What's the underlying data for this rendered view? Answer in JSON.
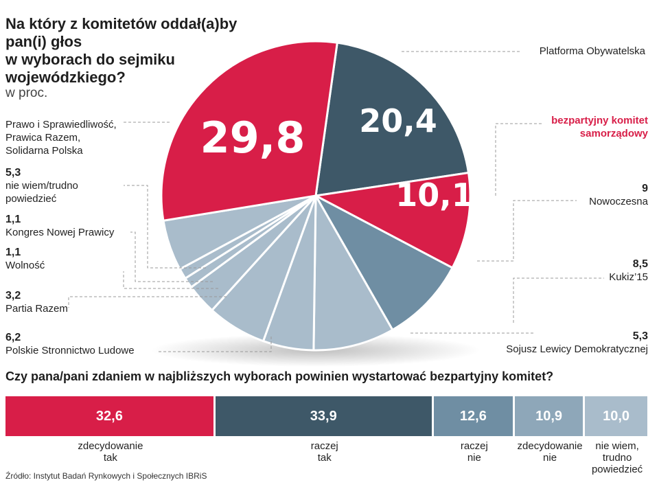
{
  "title_lines": [
    "Na który z komitetów oddał(a)by",
    "pan(i) głos",
    "w wyborach do sejmiku",
    "wojewódzkiego?"
  ],
  "unit": "w proc.",
  "colors": {
    "red": "#d81e48",
    "dark": "#3e5868",
    "mid": "#6f8ea3",
    "light": "#a9bccb"
  },
  "chart_data": [
    {
      "type": "pie",
      "title": "Na który z komitetów oddał(a)by pan(i) głos w wyborach do sejmiku wojewódzkiego?",
      "unit": "w proc.",
      "slices": [
        {
          "label": "Platforma Obywatelska",
          "value": 20.4,
          "display": "20,4",
          "color": "#3e5868"
        },
        {
          "label": "bezpartyjny komitet samorządowy",
          "value": 10.1,
          "display": "10,1",
          "color": "#d81e48"
        },
        {
          "label": "Nowoczesna",
          "value": 9,
          "display": "9",
          "color": "#6f8ea3"
        },
        {
          "label": "Kukiz'15",
          "value": 8.5,
          "display": "8,5",
          "color": "#a9bccb"
        },
        {
          "label": "Sojusz Lewicy Demokratycznej",
          "value": 5.3,
          "display": "5,3",
          "color": "#a9bccb"
        },
        {
          "label": "Polskie Stronnictwo Ludowe",
          "value": 6.2,
          "display": "6,2",
          "color": "#a9bccb"
        },
        {
          "label": "Partia Razem",
          "value": 3.2,
          "display": "3,2",
          "color": "#a9bccb"
        },
        {
          "label": "Wolność",
          "value": 1.1,
          "display": "1,1",
          "color": "#a9bccb"
        },
        {
          "label": "Kongres Nowej Prawicy",
          "value": 1.1,
          "display": "1,1",
          "color": "#a9bccb"
        },
        {
          "label": "nie wiem/trudno powiedzieć",
          "value": 5.3,
          "display": "5,3",
          "color": "#a9bccb"
        },
        {
          "label": "Prawo i Sprawiedliwość, Prawica Razem, Solidarna Polska",
          "value": 29.8,
          "display": "29,8",
          "color": "#d81e48"
        }
      ]
    },
    {
      "type": "bar",
      "title": "Czy pana/pani zdaniem w najbliższych wyborach powinien wystartować bezpartyjny komitet?",
      "categories": [
        "zdecydowanie tak",
        "raczej tak",
        "raczej nie",
        "zdecydowanie nie",
        "nie wiem, trudno powiedzieć"
      ],
      "values": [
        32.6,
        33.9,
        12.6,
        10.9,
        10.0
      ],
      "display": [
        "32,6",
        "33,9",
        "12,6",
        "10,9",
        "10,0"
      ],
      "colors": [
        "#d81e48",
        "#3e5868",
        "#6f8ea3",
        "#8ea7b9",
        "#a9bccb"
      ]
    }
  ],
  "pie_labels": {
    "po": {
      "name": "Platforma Obywatelska"
    },
    "bezp": {
      "name1": "bezpartyjny komitet",
      "name2": "samorządowy"
    },
    "nowoczesna": {
      "value": "9",
      "name": "Nowoczesna"
    },
    "kukiz": {
      "value": "8,5",
      "name": "Kukiz’15"
    },
    "sld": {
      "value": "5,3",
      "name": "Sojusz Lewicy Demokratycznej"
    },
    "pis": {
      "name1": "Prawo i Sprawiedliwość,",
      "name2": "Prawica Razem,",
      "name3": "Solidarna Polska"
    },
    "niewiem": {
      "value": "5,3",
      "name1": "nie wiem/trudno",
      "name2": "powiedzieć"
    },
    "knp": {
      "value": "1,1",
      "name": "Kongres Nowej Prawicy"
    },
    "wolnosc": {
      "value": "1,1",
      "name": "Wolność"
    },
    "razem": {
      "value": "3,2",
      "name": "Partia Razem"
    },
    "psl": {
      "value": "6,2",
      "name": "Polskie Stronnictwo Ludowe"
    }
  },
  "question": "Czy pana/pani zdaniem w najbliższych wyborach powinien wystartować bezpartyjny komitet?",
  "bar_captions": [
    [
      "zdecydowanie",
      "tak"
    ],
    [
      "raczej",
      "tak"
    ],
    [
      "raczej",
      "nie"
    ],
    [
      "zdecydowanie",
      "nie"
    ],
    [
      "nie wiem,",
      "trudno",
      "powiedzieć"
    ]
  ],
  "source": "Źródło: Instytut Badań Rynkowych i Społecznych IBRiS"
}
